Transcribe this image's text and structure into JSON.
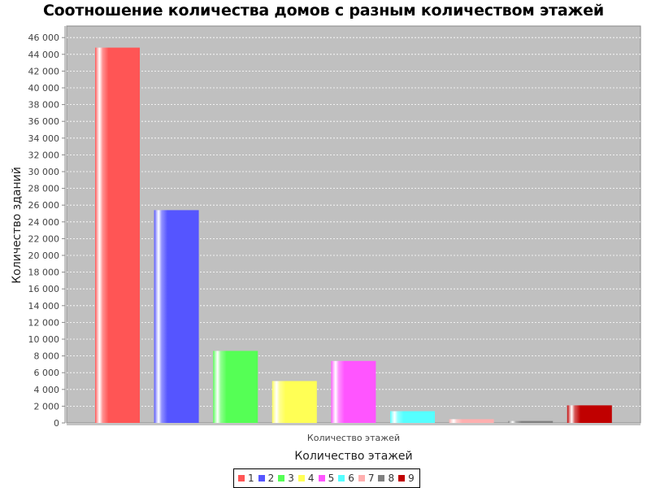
{
  "chart_data": {
    "type": "bar",
    "title": "Соотношение количества домов с разным количеством этажей",
    "xlabel": "Количество этажей",
    "ylabel": "Количество зданий",
    "category_label": "Количество этажей",
    "ylim": [
      0,
      47000
    ],
    "ytick_step": 2000,
    "ytick_labels": [
      "0",
      "2 000",
      "4 000",
      "6 000",
      "8 000",
      "10 000",
      "12 000",
      "14 000",
      "16 000",
      "18 000",
      "20 000",
      "22 000",
      "24 000",
      "26 000",
      "28 000",
      "30 000",
      "32 000",
      "34 000",
      "36 000",
      "38 000",
      "40 000",
      "42 000",
      "44 000",
      "46 000"
    ],
    "grid": true,
    "legend": "bottom",
    "series": [
      {
        "name": "1",
        "value": 44800,
        "color": "#ff5555"
      },
      {
        "name": "2",
        "value": 25400,
        "color": "#5555ff"
      },
      {
        "name": "3",
        "value": 8600,
        "color": "#55ff55"
      },
      {
        "name": "4",
        "value": 5000,
        "color": "#ffff55"
      },
      {
        "name": "5",
        "value": 7400,
        "color": "#ff55ff"
      },
      {
        "name": "6",
        "value": 1400,
        "color": "#55ffff"
      },
      {
        "name": "7",
        "value": 450,
        "color": "#ffafaf"
      },
      {
        "name": "8",
        "value": 230,
        "color": "#808080"
      },
      {
        "name": "9",
        "value": 2100,
        "color": "#c00000"
      }
    ]
  }
}
